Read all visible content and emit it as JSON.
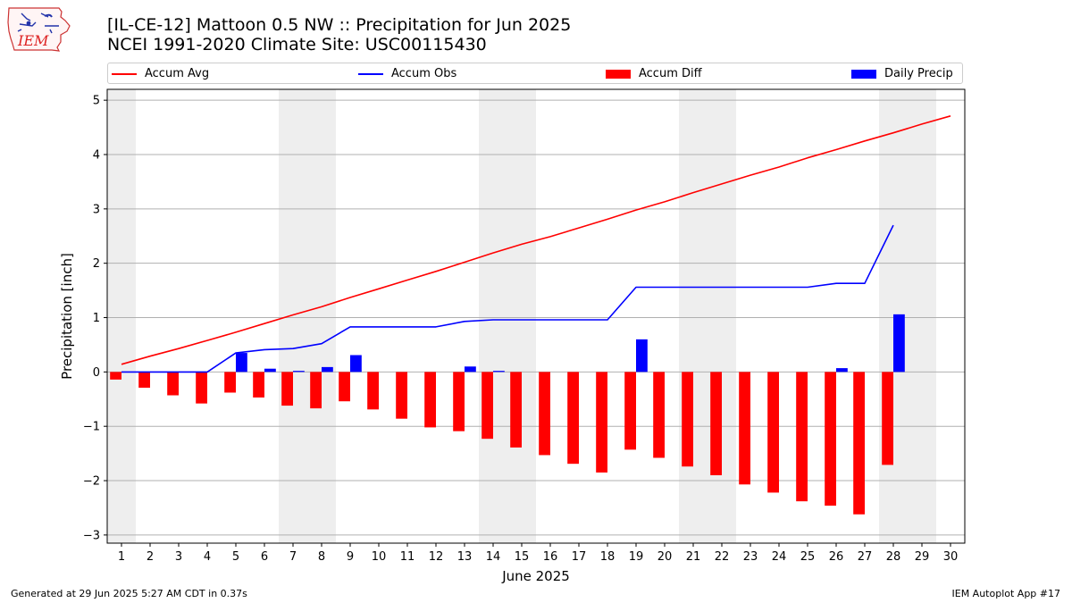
{
  "title_line1": "[IL-CE-12] Mattoon 0.5 NW :: Precipitation for Jun 2025",
  "title_line2": "NCEI 1991-2020 Climate Site: USC00115430",
  "logo_text": "IEM",
  "footer_left": "Generated at 29 Jun 2025 5:27 AM CDT in 0.37s",
  "footer_right": "IEM Autoplot App #17",
  "legend": [
    {
      "label": "Accum Avg",
      "color": "#ff0000",
      "kind": "line"
    },
    {
      "label": "Accum Obs",
      "color": "#0000ff",
      "kind": "line"
    },
    {
      "label": "Accum Diff",
      "color": "#ff0000",
      "kind": "bar"
    },
    {
      "label": "Daily Precip",
      "color": "#0000ff",
      "kind": "bar"
    }
  ],
  "chart_data": {
    "type": "bar",
    "xlabel": "June 2025",
    "ylabel": "Precipitation [inch]",
    "xlim": [
      0.5,
      30.5
    ],
    "ylim": [
      -3.15,
      5.2
    ],
    "yticks": [
      5,
      4,
      3,
      2,
      1,
      0,
      -1,
      -2,
      -3
    ],
    "ytick_labels": [
      "5",
      "4",
      "3",
      "2",
      "1",
      "0",
      "−1",
      "−2",
      "−3"
    ],
    "days": [
      1,
      2,
      3,
      4,
      5,
      6,
      7,
      8,
      9,
      10,
      11,
      12,
      13,
      14,
      15,
      16,
      17,
      18,
      19,
      20,
      21,
      22,
      23,
      24,
      25,
      26,
      27,
      28,
      29,
      30
    ],
    "weekend_shading": [
      [
        0.5,
        1.5
      ],
      [
        6.5,
        8.5
      ],
      [
        13.5,
        15.5
      ],
      [
        20.5,
        22.5
      ],
      [
        27.5,
        29.5
      ]
    ],
    "grid": true,
    "series": [
      {
        "name": "Accum Avg",
        "type": "line",
        "color": "#ff0000",
        "x": [
          1,
          2,
          3,
          4,
          5,
          6,
          7,
          8,
          9,
          10,
          11,
          12,
          13,
          14,
          15,
          16,
          17,
          18,
          19,
          20,
          21,
          22,
          23,
          24,
          25,
          26,
          27,
          28,
          29,
          30
        ],
        "values": [
          0.14,
          0.29,
          0.43,
          0.58,
          0.73,
          0.89,
          1.05,
          1.2,
          1.37,
          1.53,
          1.69,
          1.85,
          2.02,
          2.19,
          2.35,
          2.49,
          2.65,
          2.81,
          2.98,
          3.13,
          3.3,
          3.46,
          3.62,
          3.77,
          3.94,
          4.09,
          4.25,
          4.4,
          4.56,
          4.71
        ]
      },
      {
        "name": "Accum Obs",
        "type": "line",
        "color": "#0000ff",
        "x": [
          1,
          2,
          3,
          4,
          5,
          6,
          7,
          8,
          9,
          10,
          11,
          12,
          13,
          14,
          15,
          16,
          17,
          18,
          19,
          20,
          21,
          22,
          23,
          24,
          25,
          26,
          27,
          28
        ],
        "values": [
          0,
          0,
          0,
          0,
          0.35,
          0.41,
          0.43,
          0.52,
          0.83,
          0.83,
          0.83,
          0.83,
          0.93,
          0.96,
          0.96,
          0.96,
          0.96,
          0.96,
          1.56,
          1.56,
          1.56,
          1.56,
          1.56,
          1.56,
          1.56,
          1.63,
          1.63,
          2.7
        ]
      },
      {
        "name": "Accum Diff",
        "type": "bar",
        "color": "#ff0000",
        "x": [
          1,
          2,
          3,
          4,
          5,
          6,
          7,
          8,
          9,
          10,
          11,
          12,
          13,
          14,
          15,
          16,
          17,
          18,
          19,
          20,
          21,
          22,
          23,
          24,
          25,
          26,
          27,
          28
        ],
        "values": [
          -0.14,
          -0.29,
          -0.43,
          -0.58,
          -0.38,
          -0.47,
          -0.62,
          -0.67,
          -0.54,
          -0.69,
          -0.86,
          -1.02,
          -1.09,
          -1.23,
          -1.39,
          -1.53,
          -1.69,
          -1.85,
          -1.43,
          -1.58,
          -1.74,
          -1.9,
          -2.07,
          -2.22,
          -2.38,
          -2.46,
          -2.62,
          -1.71
        ]
      },
      {
        "name": "Daily Precip",
        "type": "bar",
        "color": "#0000ff",
        "x": [
          1,
          2,
          3,
          4,
          5,
          6,
          7,
          8,
          9,
          10,
          11,
          12,
          13,
          14,
          15,
          16,
          17,
          18,
          19,
          20,
          21,
          22,
          23,
          24,
          25,
          26,
          27,
          28
        ],
        "values": [
          0,
          0,
          0,
          0,
          0.35,
          0.06,
          0.02,
          0.09,
          0.31,
          0,
          0,
          0,
          0.1,
          0.02,
          0,
          0,
          0,
          0,
          0.6,
          0,
          0,
          0,
          0,
          0,
          0,
          0.07,
          0,
          1.06
        ]
      }
    ]
  }
}
